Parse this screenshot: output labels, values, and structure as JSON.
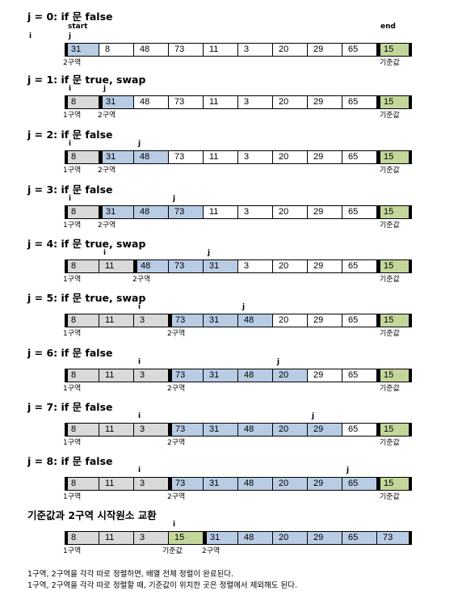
{
  "colors": {
    "region1": "#d9d9d9",
    "region2": "#b8cce4",
    "pivot": "#c4d79b",
    "plain": "#ffffff"
  },
  "labels": {
    "region1": "1구역",
    "region2": "2구역",
    "pivot": "기준값",
    "start": "start",
    "end": "end"
  },
  "steps": [
    {
      "title": "j = 0: if 문 false",
      "values": [
        "31",
        "8",
        "48",
        "73",
        "11",
        "3",
        "20",
        "29",
        "65",
        "15"
      ],
      "colors": [
        "r2",
        "w",
        "w",
        "w",
        "w",
        "w",
        "w",
        "w",
        "w",
        "p"
      ],
      "i_label": "i",
      "i_pos": -1,
      "j_label": "j",
      "j_pos": 0,
      "r1_start": -1,
      "r2_start": 0,
      "pivot_index": 9,
      "show_start_end": true
    },
    {
      "title": "j = 1: if 문 true,   swap",
      "values": [
        "8",
        "31",
        "48",
        "73",
        "11",
        "3",
        "20",
        "29",
        "65",
        "15"
      ],
      "colors": [
        "r1",
        "r2",
        "w",
        "w",
        "w",
        "w",
        "w",
        "w",
        "w",
        "p"
      ],
      "i_label": "i",
      "i_pos": 0,
      "j_label": "j",
      "j_pos": 1,
      "r1_start": 0,
      "r2_start": 1,
      "pivot_index": 9
    },
    {
      "title": "j = 2: if 문 false",
      "values": [
        "8",
        "31",
        "48",
        "73",
        "11",
        "3",
        "20",
        "29",
        "65",
        "15"
      ],
      "colors": [
        "r1",
        "r2",
        "r2",
        "w",
        "w",
        "w",
        "w",
        "w",
        "w",
        "p"
      ],
      "i_label": "i",
      "i_pos": 0,
      "j_label": "j",
      "j_pos": 2,
      "r1_start": 0,
      "r2_start": 1,
      "pivot_index": 9
    },
    {
      "title": "j = 3: if 문 false",
      "values": [
        "8",
        "31",
        "48",
        "73",
        "11",
        "3",
        "20",
        "29",
        "65",
        "15"
      ],
      "colors": [
        "r1",
        "r2",
        "r2",
        "r2",
        "w",
        "w",
        "w",
        "w",
        "w",
        "p"
      ],
      "i_label": "i",
      "i_pos": 0,
      "j_label": "j",
      "j_pos": 3,
      "r1_start": 0,
      "r2_start": 1,
      "pivot_index": 9
    },
    {
      "title": "j = 4: if 문 true,   swap",
      "values": [
        "8",
        "11",
        "48",
        "73",
        "31",
        "3",
        "20",
        "29",
        "65",
        "15"
      ],
      "colors": [
        "r1",
        "r1",
        "r2",
        "r2",
        "r2",
        "w",
        "w",
        "w",
        "w",
        "p"
      ],
      "i_label": "i",
      "i_pos": 1,
      "j_label": "j",
      "j_pos": 4,
      "r1_start": 0,
      "r2_start": 2,
      "pivot_index": 9
    },
    {
      "title": "j = 5: if 문 true,   swap",
      "values": [
        "8",
        "11",
        "3",
        "73",
        "31",
        "48",
        "20",
        "29",
        "65",
        "15"
      ],
      "colors": [
        "r1",
        "r1",
        "r1",
        "r2",
        "r2",
        "r2",
        "w",
        "w",
        "w",
        "p"
      ],
      "i_label": "i",
      "i_pos": 2,
      "j_label": "j",
      "j_pos": 5,
      "r1_start": 0,
      "r2_start": 3,
      "pivot_index": 9
    },
    {
      "title": "j = 6: if 문 false",
      "values": [
        "8",
        "11",
        "3",
        "73",
        "31",
        "48",
        "20",
        "29",
        "65",
        "15"
      ],
      "colors": [
        "r1",
        "r1",
        "r1",
        "r2",
        "r2",
        "r2",
        "r2",
        "w",
        "w",
        "p"
      ],
      "i_label": "i",
      "i_pos": 2,
      "j_label": "j",
      "j_pos": 6,
      "r1_start": 0,
      "r2_start": 3,
      "pivot_index": 9
    },
    {
      "title": "j = 7: if 문 false",
      "values": [
        "8",
        "11",
        "3",
        "73",
        "31",
        "48",
        "20",
        "29",
        "65",
        "15"
      ],
      "colors": [
        "r1",
        "r1",
        "r1",
        "r2",
        "r2",
        "r2",
        "r2",
        "r2",
        "w",
        "p"
      ],
      "i_label": "i",
      "i_pos": 2,
      "j_label": "j",
      "j_pos": 7,
      "r1_start": 0,
      "r2_start": 3,
      "pivot_index": 9
    },
    {
      "title": "j = 8: if 문 false",
      "values": [
        "8",
        "11",
        "3",
        "73",
        "31",
        "48",
        "20",
        "29",
        "65",
        "15"
      ],
      "colors": [
        "r1",
        "r1",
        "r1",
        "r2",
        "r2",
        "r2",
        "r2",
        "r2",
        "r2",
        "p"
      ],
      "i_label": "i",
      "i_pos": 2,
      "j_label": "j",
      "j_pos": 8,
      "r1_start": 0,
      "r2_start": 3,
      "pivot_index": 9
    },
    {
      "title": "기준값과 2구역 시작원소 교환",
      "values": [
        "8",
        "11",
        "3",
        "15",
        "31",
        "48",
        "20",
        "29",
        "65",
        "73"
      ],
      "colors": [
        "r1",
        "r1",
        "r1",
        "p",
        "r2",
        "r2",
        "r2",
        "r2",
        "r2",
        "r2"
      ],
      "i_label": "i",
      "i_pos": 3,
      "j_label": "",
      "j_pos": -2,
      "r1_start": 0,
      "r2_start": 4,
      "pivot_index": 3,
      "final": true
    }
  ],
  "notes": [
    "1구역, 2구역을 각각 따로 정렬하면, 배열 전체 정렬이 완료된다.",
    "1구역, 2구역을 각각 따로 정렬할 때, 기준값이 위치한 곳은 정렬에서 제외해도 된다."
  ]
}
